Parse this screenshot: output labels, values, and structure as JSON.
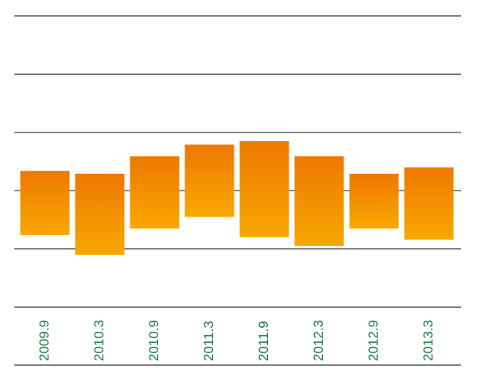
{
  "chart_data": {
    "type": "floating_bar",
    "categories": [
      "2009.9",
      "2010.3",
      "2010.9",
      "2011.3",
      "2011.9",
      "2012.3",
      "2012.9",
      "2013.3"
    ],
    "lows": [
      1.24,
      0.9,
      1.35,
      1.55,
      1.2,
      1.05,
      1.35,
      1.16
    ],
    "highs": [
      2.34,
      2.29,
      2.59,
      2.79,
      2.85,
      2.59,
      2.29,
      2.4
    ],
    "colors": [
      "#ee7800",
      "#f7a800"
    ],
    "label_color": "#1a7a44",
    "ylim": [
      0,
      5
    ],
    "yticks": [
      0,
      1,
      2,
      3,
      4,
      5
    ],
    "grid": true
  }
}
